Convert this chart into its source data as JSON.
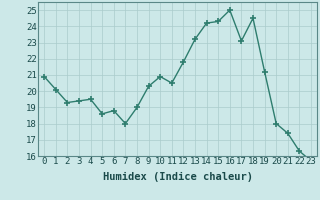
{
  "x": [
    0,
    1,
    2,
    3,
    4,
    5,
    6,
    7,
    8,
    9,
    10,
    11,
    12,
    13,
    14,
    15,
    16,
    17,
    18,
    19,
    20,
    21,
    22,
    23
  ],
  "y": [
    20.9,
    20.1,
    19.3,
    19.4,
    19.5,
    18.6,
    18.8,
    18.0,
    19.0,
    20.3,
    20.9,
    20.5,
    21.8,
    23.2,
    24.2,
    24.3,
    25.0,
    23.1,
    24.5,
    21.2,
    18.0,
    17.4,
    16.3,
    15.7
  ],
  "line_color": "#2e7d6e",
  "marker": "+",
  "markersize": 4,
  "linewidth": 1.0,
  "bg_color": "#cce8e8",
  "grid_color": "#aacccc",
  "xlabel": "Humidex (Indice chaleur)",
  "xlim": [
    -0.5,
    23.5
  ],
  "ylim": [
    16,
    25.5
  ],
  "yticks": [
    16,
    17,
    18,
    19,
    20,
    21,
    22,
    23,
    24,
    25
  ],
  "xticks": [
    0,
    1,
    2,
    3,
    4,
    5,
    6,
    7,
    8,
    9,
    10,
    11,
    12,
    13,
    14,
    15,
    16,
    17,
    18,
    19,
    20,
    21,
    22,
    23
  ],
  "xlabel_fontsize": 7.5,
  "tick_fontsize": 6.5
}
